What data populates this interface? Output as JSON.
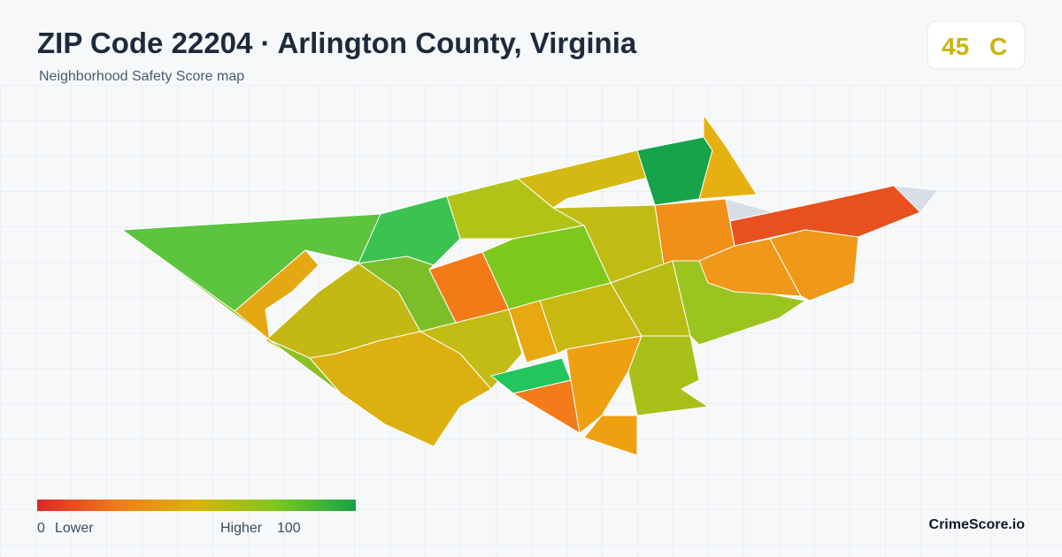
{
  "header": {
    "title": "ZIP Code 22204 · Arlington County, Virginia",
    "subtitle": "Neighborhood Safety Score map"
  },
  "score": {
    "value": 45,
    "grade": "C"
  },
  "legend": {
    "min": 0,
    "min_label": "Lower",
    "max_label": "Higher",
    "max": 100
  },
  "brand": "CrimeScore.io"
}
